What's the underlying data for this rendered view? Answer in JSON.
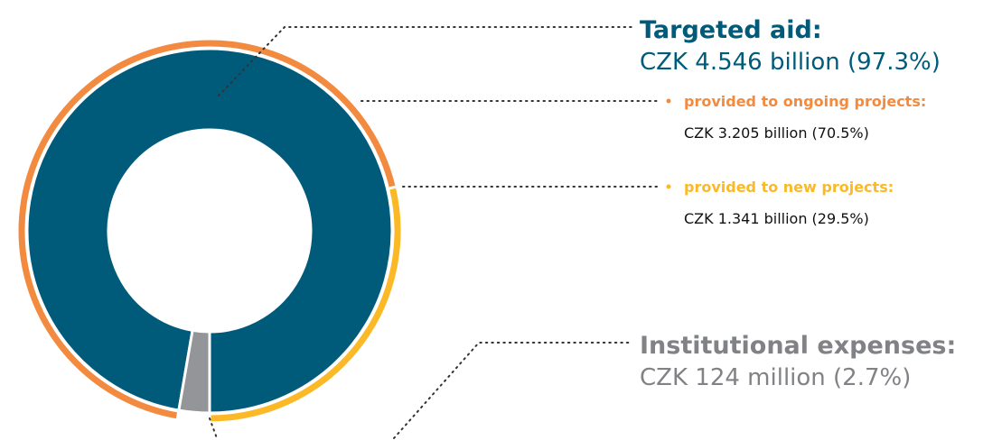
{
  "chart_data": {
    "type": "donut",
    "categories": [
      "Targeted aid:",
      "Institutional expenses:"
    ],
    "values": [
      97.3,
      2.7
    ],
    "value_labels": [
      "CZK 4.546 billion (97.3%)",
      "CZK 124 million (2.7%)"
    ],
    "colors": [
      "#005b7b",
      "#939598"
    ],
    "breakdown": {
      "categories": [
        "provided to ongoing projects:",
        "provided to new projects:"
      ],
      "values": [
        70.5,
        29.5
      ],
      "value_labels": [
        "CZK 3.205 billion (70.5%)",
        "CZK 1.341 billion (29.5%)"
      ],
      "colors": [
        "#f28b3f",
        "#fbb927"
      ]
    }
  }
}
